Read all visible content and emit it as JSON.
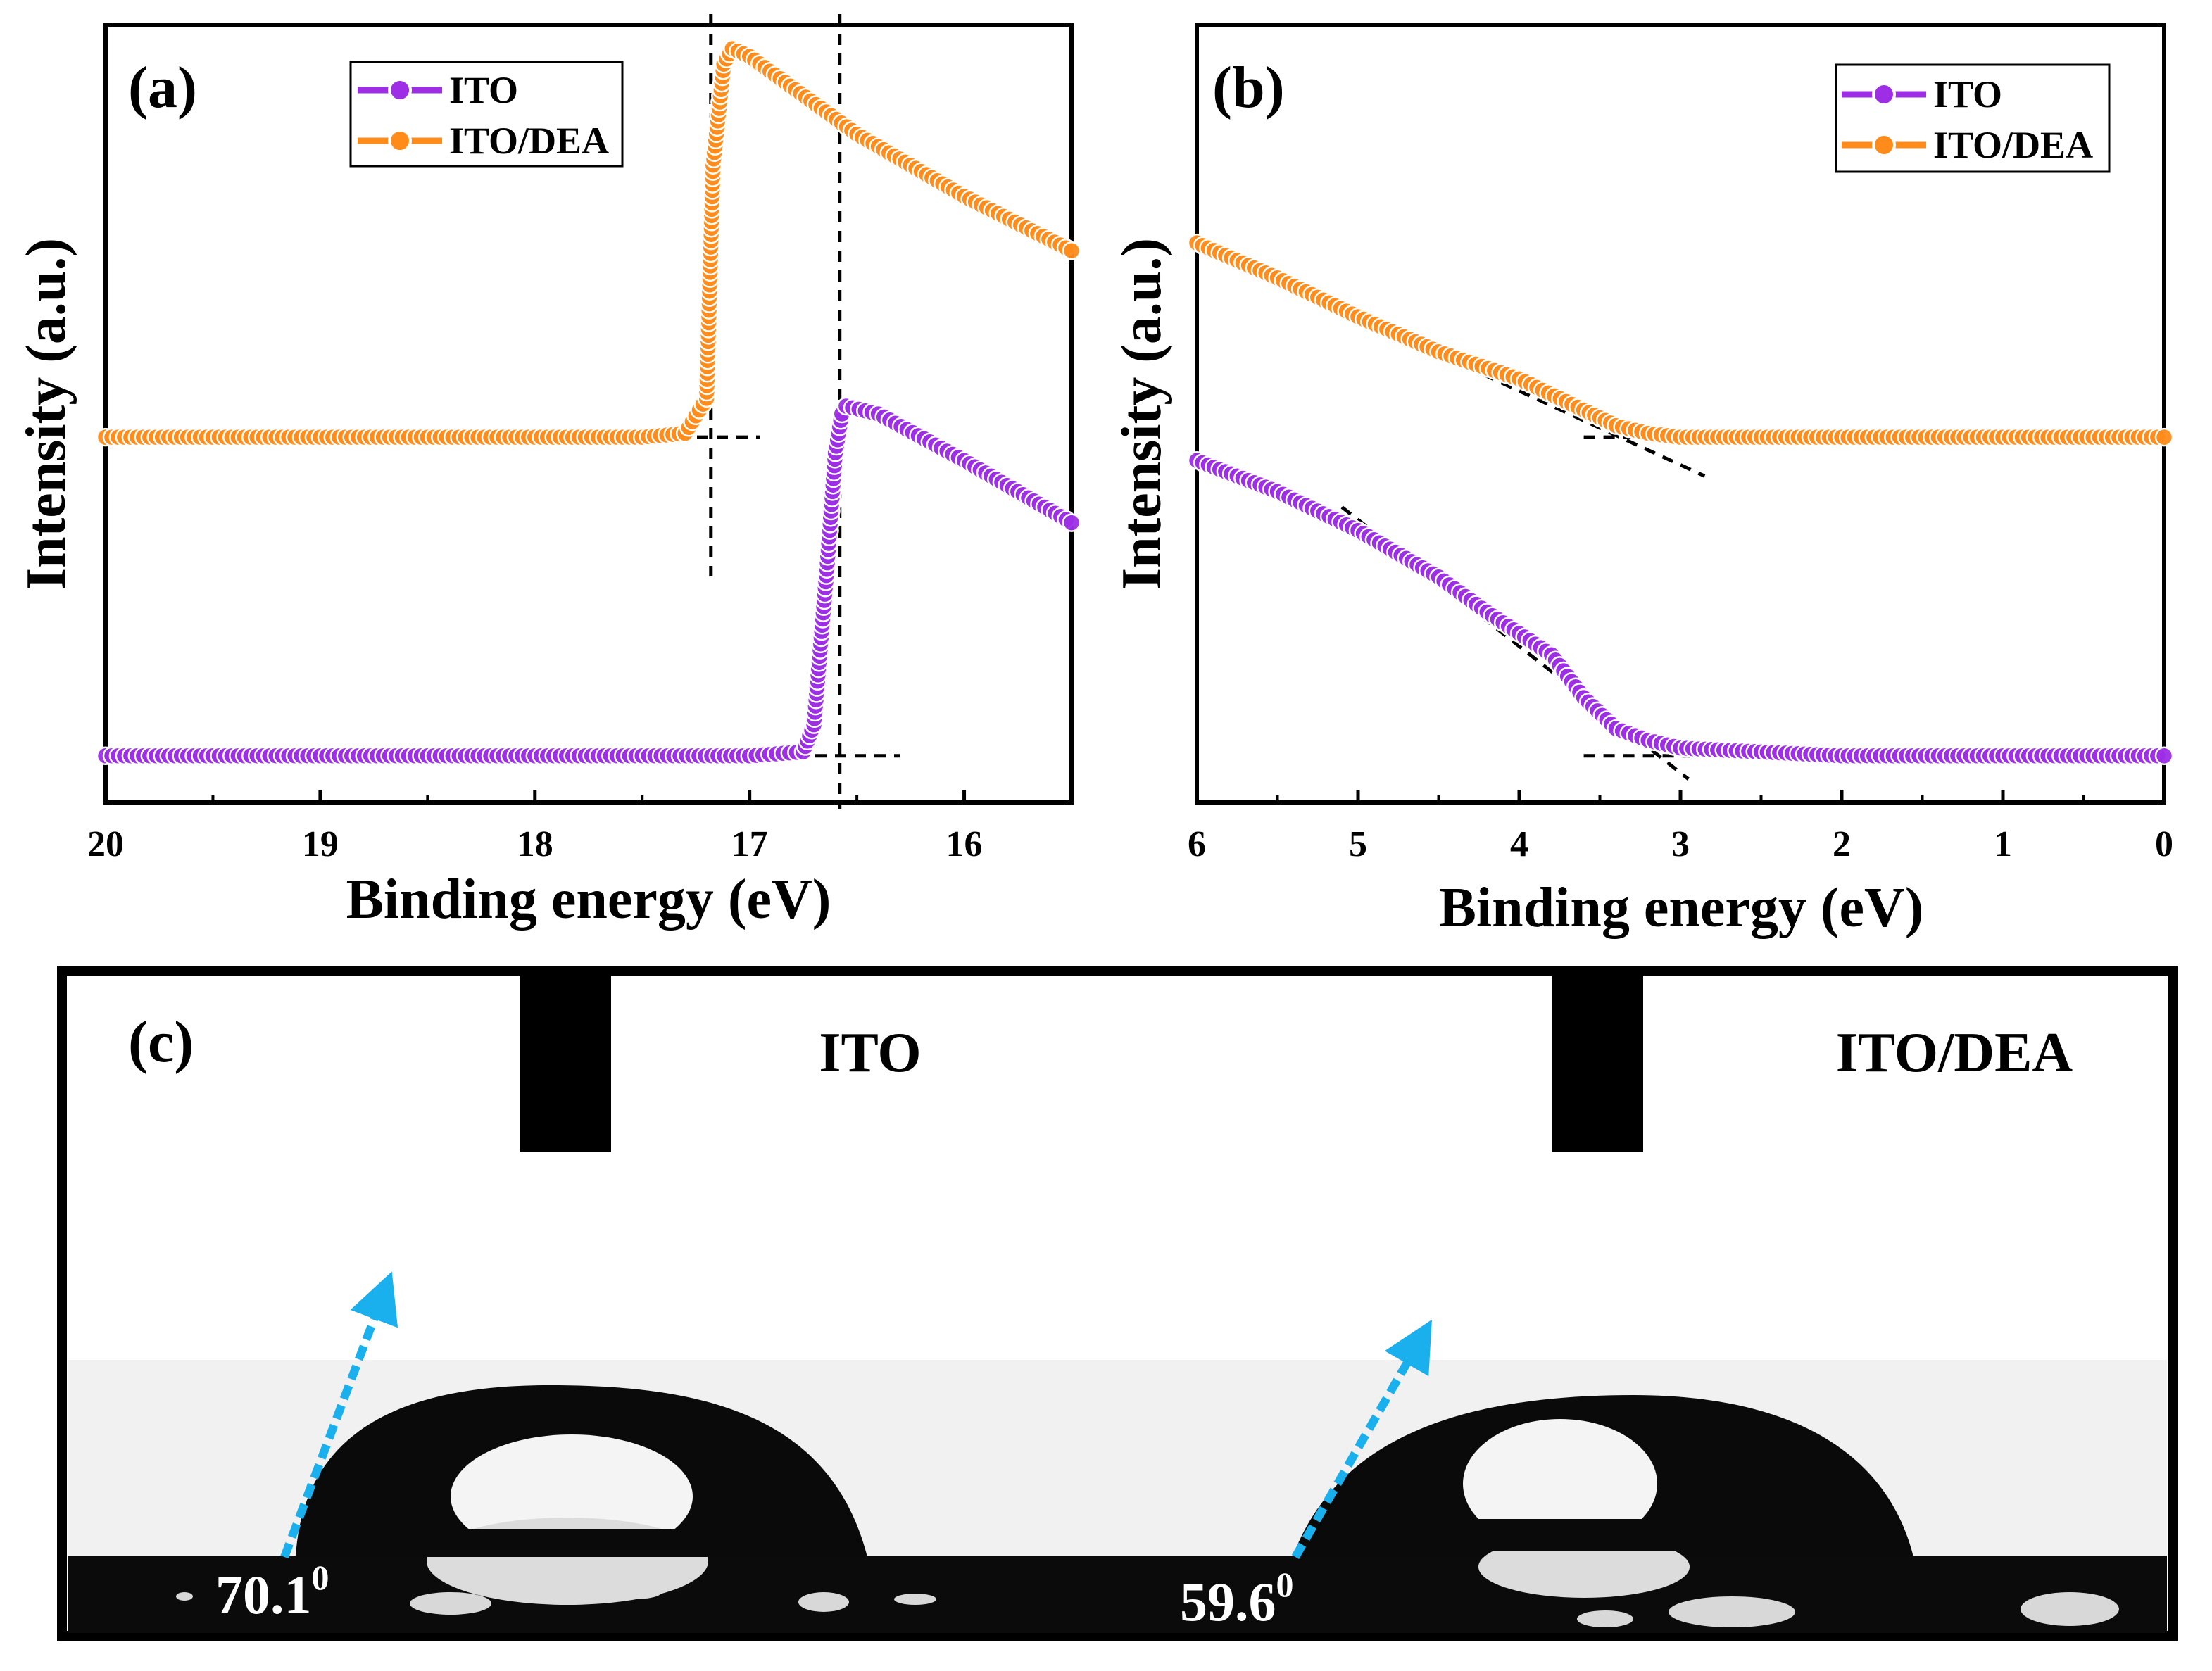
{
  "colors": {
    "ito": "#9d2ee6",
    "ito_dea": "#ff8c1a",
    "contact_arrow": "#1ab0ee",
    "frame": "#000000"
  },
  "chart_data": [
    {
      "panel_label": "(a)",
      "type": "line",
      "markers": "circle",
      "title": "",
      "xlabel": "Binding energy (eV)",
      "ylabel": "Intensity (a.u.)",
      "xlim": [
        20,
        15.5
      ],
      "x_reversed": true,
      "ylim": [
        0,
        1.0
      ],
      "xticks": [
        "20",
        "19",
        "18",
        "17",
        "16"
      ],
      "xtick_values": [
        20,
        19,
        18,
        17,
        16
      ],
      "legend": [
        "ITO",
        "ITO/DEA"
      ],
      "legend_placement": "top-center",
      "series": [
        {
          "name": "ITO/DEA",
          "x": [
            20.0,
            19.0,
            18.0,
            17.5,
            17.3,
            17.2,
            17.17,
            17.12,
            17.08,
            17.0,
            16.5,
            16.0,
            15.5
          ],
          "y": [
            0.47,
            0.47,
            0.47,
            0.47,
            0.475,
            0.52,
            0.82,
            0.95,
            0.97,
            0.96,
            0.86,
            0.78,
            0.71
          ]
        },
        {
          "name": "ITO",
          "x": [
            20.0,
            19.0,
            18.0,
            17.0,
            16.75,
            16.7,
            16.64,
            16.6,
            16.57,
            16.55,
            16.4,
            16.0,
            15.5
          ],
          "y": [
            0.06,
            0.06,
            0.06,
            0.06,
            0.065,
            0.1,
            0.3,
            0.45,
            0.5,
            0.51,
            0.5,
            0.44,
            0.36
          ]
        }
      ],
      "guides": [
        {
          "kind": "vertical",
          "x": 17.18
        },
        {
          "kind": "baseline",
          "x": [
            20.0,
            16.95
          ],
          "y": 0.47
        },
        {
          "kind": "vertical",
          "x": 16.58
        },
        {
          "kind": "baseline",
          "x": [
            20.0,
            16.3
          ],
          "y": 0.06
        }
      ],
      "annotations": []
    },
    {
      "panel_label": "(b)",
      "type": "line",
      "markers": "circle",
      "title": "",
      "xlabel": "Binding energy (eV)",
      "ylabel": "Intensity (a.u.)",
      "xlim": [
        6,
        0
      ],
      "x_reversed": true,
      "ylim": [
        0,
        1.0
      ],
      "xticks": [
        "6",
        "5",
        "4",
        "3",
        "2",
        "1",
        "0"
      ],
      "xtick_values": [
        6,
        5,
        4,
        3,
        2,
        1,
        0
      ],
      "legend": [
        "ITO",
        "ITO/DEA"
      ],
      "legend_placement": "top-right",
      "series": [
        {
          "name": "ITO/DEA",
          "x": [
            6.0,
            5.5,
            5.0,
            4.5,
            4.0,
            3.6,
            3.4,
            3.2,
            3.0,
            2.5,
            2.0,
            1.0,
            0.0
          ],
          "y": [
            0.72,
            0.675,
            0.625,
            0.58,
            0.545,
            0.505,
            0.485,
            0.475,
            0.47,
            0.47,
            0.47,
            0.47,
            0.47
          ]
        },
        {
          "name": "ITO",
          "x": [
            6.0,
            5.5,
            5.0,
            4.5,
            4.2,
            3.8,
            3.6,
            3.4,
            3.2,
            3.0,
            2.5,
            2.0,
            1.0,
            0.0
          ],
          "y": [
            0.44,
            0.4,
            0.35,
            0.29,
            0.245,
            0.19,
            0.135,
            0.095,
            0.08,
            0.07,
            0.065,
            0.06,
            0.06,
            0.06
          ]
        }
      ],
      "guides": [
        {
          "kind": "line",
          "x": [
            6.0,
            2.85
          ],
          "y": [
            0.72,
            0.42
          ]
        },
        {
          "kind": "line",
          "x": [
            3.6,
            0.0
          ],
          "y": [
            0.47,
            0.47
          ]
        },
        {
          "kind": "line",
          "x": [
            5.1,
            2.95
          ],
          "y": [
            0.38,
            0.03
          ]
        },
        {
          "kind": "line",
          "x": [
            3.6,
            0.0
          ],
          "y": [
            0.06,
            0.06
          ]
        }
      ],
      "annotations": []
    }
  ],
  "panel_c": {
    "label": "(c)",
    "samples": [
      {
        "name": "ITO",
        "contact_angle": "70.1",
        "unit": "0"
      },
      {
        "name": "ITO/DEA",
        "contact_angle": "59.6",
        "unit": "0"
      }
    ]
  }
}
